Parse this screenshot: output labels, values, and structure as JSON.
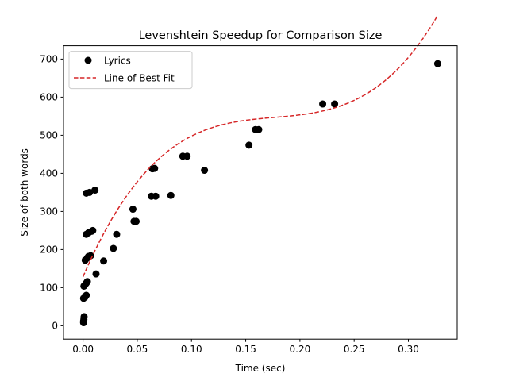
{
  "chart_data": {
    "type": "scatter",
    "title": "Levenshtein Speedup for Comparison Size",
    "xlabel": "Time (sec)",
    "ylabel": "Size of both words",
    "xlim": [
      -0.018,
      0.345
    ],
    "ylim": [
      -35,
      735
    ],
    "x_ticks": [
      0.0,
      0.05,
      0.1,
      0.15,
      0.2,
      0.25,
      0.3
    ],
    "x_tick_labels": [
      "0.00",
      "0.05",
      "0.10",
      "0.15",
      "0.20",
      "0.25",
      "0.30"
    ],
    "y_ticks": [
      0,
      100,
      200,
      300,
      400,
      500,
      600,
      700
    ],
    "y_tick_labels": [
      "0",
      "100",
      "200",
      "300",
      "400",
      "500",
      "600",
      "700"
    ],
    "grid": false,
    "legend_position": "top-left",
    "series": [
      {
        "name": "Lyrics",
        "kind": "scatter",
        "color": "#000000",
        "points": [
          [
            0.0005,
            8
          ],
          [
            0.0005,
            12
          ],
          [
            0.0008,
            16
          ],
          [
            0.0008,
            20
          ],
          [
            0.001,
            24
          ],
          [
            0.0005,
            72
          ],
          [
            0.002,
            76
          ],
          [
            0.003,
            80
          ],
          [
            0.0008,
            104
          ],
          [
            0.002,
            108
          ],
          [
            0.003,
            112
          ],
          [
            0.004,
            116
          ],
          [
            0.002,
            172
          ],
          [
            0.004,
            178
          ],
          [
            0.005,
            182
          ],
          [
            0.007,
            184
          ],
          [
            0.003,
            240
          ],
          [
            0.005,
            244
          ],
          [
            0.008,
            248
          ],
          [
            0.009,
            250
          ],
          [
            0.003,
            348
          ],
          [
            0.006,
            350
          ],
          [
            0.011,
            356
          ],
          [
            0.012,
            136
          ],
          [
            0.019,
            170
          ],
          [
            0.028,
            203
          ],
          [
            0.031,
            240
          ],
          [
            0.046,
            306
          ],
          [
            0.047,
            274
          ],
          [
            0.049,
            274
          ],
          [
            0.064,
            412
          ],
          [
            0.066,
            413
          ],
          [
            0.063,
            340
          ],
          [
            0.067,
            340
          ],
          [
            0.081,
            342
          ],
          [
            0.092,
            445
          ],
          [
            0.096,
            445
          ],
          [
            0.112,
            408
          ],
          [
            0.153,
            474
          ],
          [
            0.159,
            515
          ],
          [
            0.162,
            515
          ],
          [
            0.221,
            582
          ],
          [
            0.232,
            582
          ],
          [
            0.327,
            688
          ]
        ]
      },
      {
        "name": "Line of Best Fit",
        "kind": "line",
        "style": "dashed",
        "color": "#d62728",
        "fit": "cubic",
        "coefficients": [
          128.53,
          6620.8,
          -36100,
          68100
        ],
        "x_range": [
          0.0,
          0.327
        ]
      }
    ]
  }
}
